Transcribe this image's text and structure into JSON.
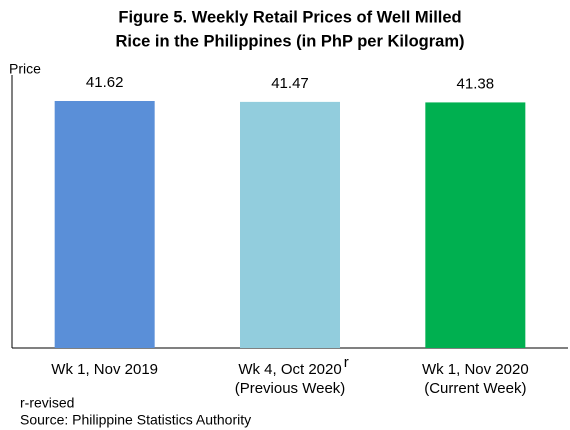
{
  "chart_data": {
    "type": "bar",
    "title": [
      "Figure 5. Weekly Retail Prices of Well Milled",
      "Rice in the Philippines (in PhP per Kilogram)"
    ],
    "ylabel": "Price",
    "categories": [
      [
        "Wk 1, Nov 2019"
      ],
      [
        "Wk 4, Oct 2020",
        "(Previous Week)"
      ],
      [
        "Wk 1, Nov 2020",
        "(Current Week)"
      ]
    ],
    "category_superscripts": [
      null,
      "r",
      null
    ],
    "values": [
      41.62,
      41.47,
      41.38
    ],
    "colors": [
      "#5a8fd8",
      "#92cddd",
      "#00b050"
    ],
    "ylim": [
      0,
      46
    ],
    "grid": false,
    "footnotes": [
      "r-revised",
      "Source: Philippine Statistics Authority"
    ]
  }
}
